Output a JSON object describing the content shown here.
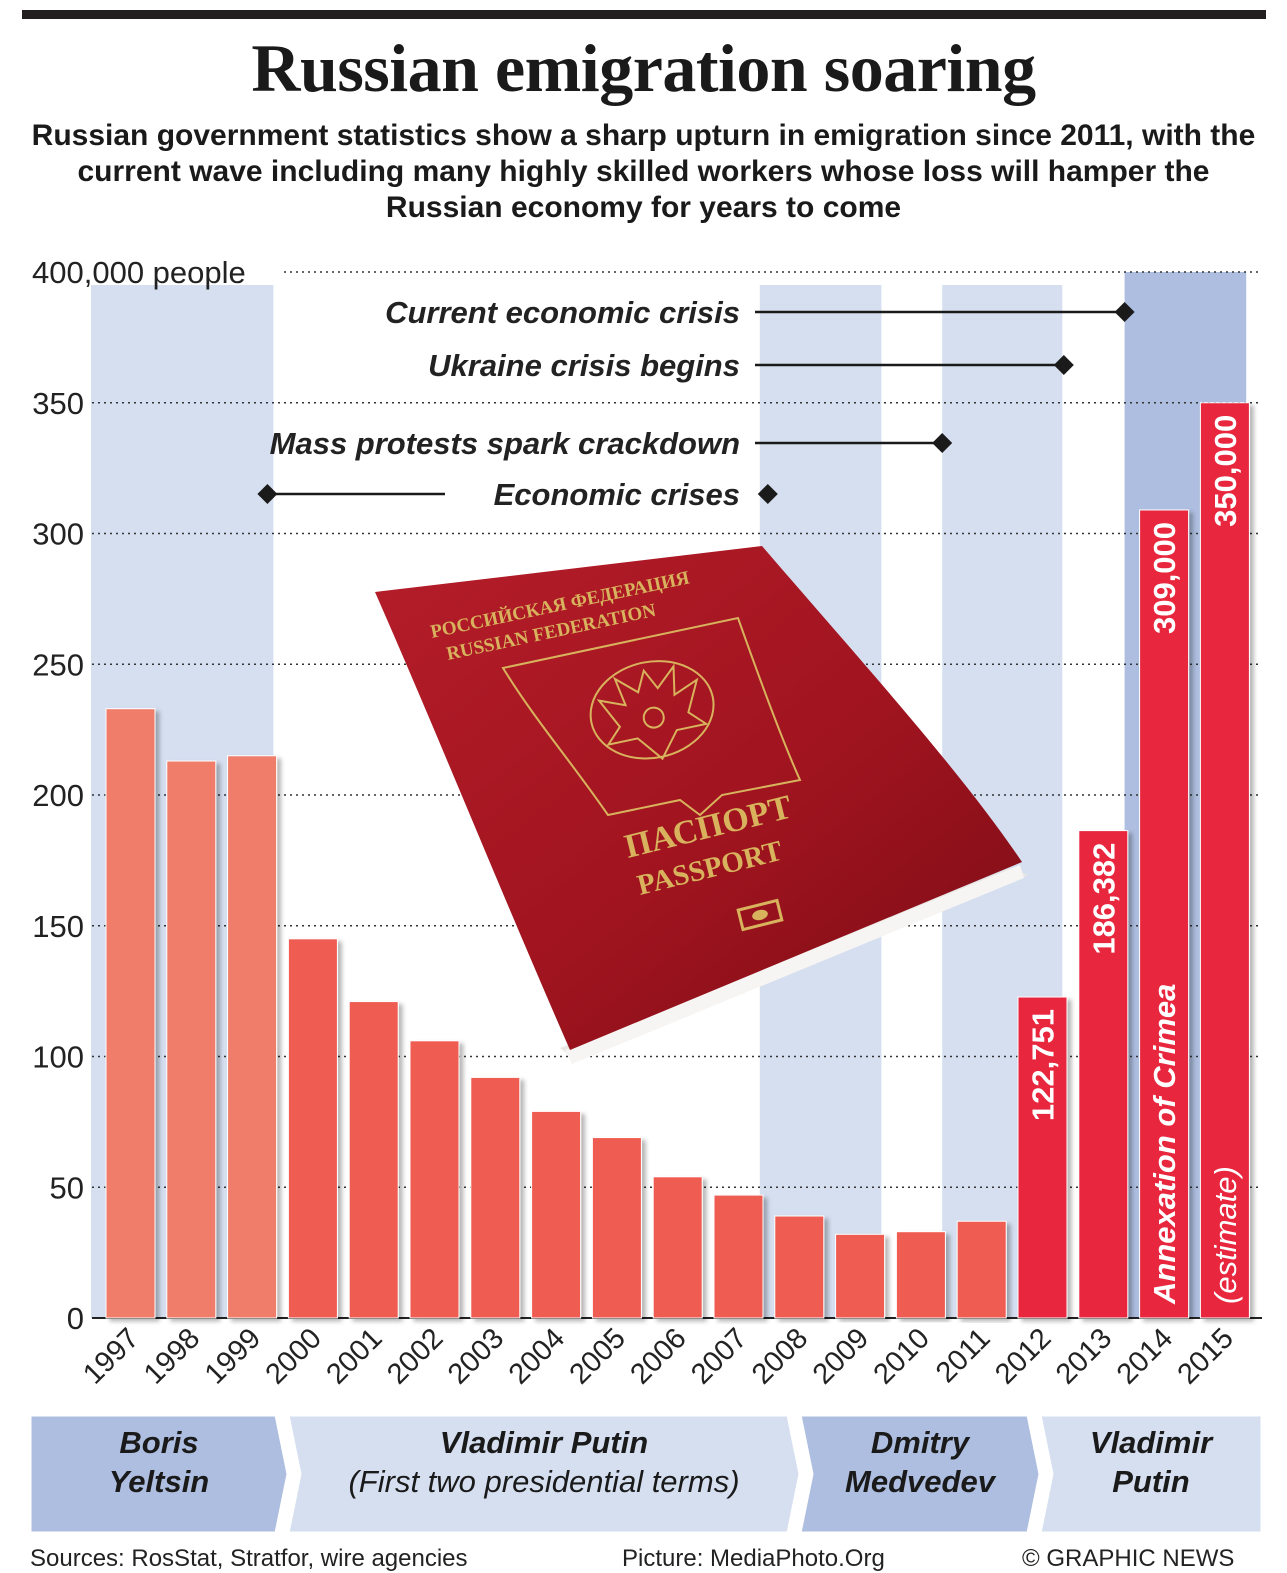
{
  "title": "Russian emigration soaring",
  "subtitle": "Russian government statistics show a sharp upturn in emigration since 2011, with the current wave including many highly skilled workers whose loss will hamper the Russian economy for years to come",
  "colors": {
    "bar_early": "#f07d6b",
    "bar_mid": "#ef5b51",
    "bar_late": "#e8283d",
    "band_light": "#d5dff0",
    "band_dark": "#aebee0",
    "leader_band": "#aebee0"
  },
  "chart_data": {
    "type": "bar",
    "categories": [
      "1997",
      "1998",
      "1999",
      "2000",
      "2001",
      "2002",
      "2003",
      "2004",
      "2005",
      "2006",
      "2007",
      "2008",
      "2009",
      "2010",
      "2011",
      "2012",
      "2013",
      "2014",
      "2015"
    ],
    "values": [
      233000,
      213000,
      215000,
      145000,
      121000,
      106000,
      92000,
      79000,
      69000,
      54000,
      47000,
      39000,
      32000,
      33000,
      37000,
      122751,
      186382,
      309000,
      350000
    ],
    "ylim": [
      0,
      400000
    ],
    "yticks": [
      {
        "value": 0,
        "label": "0"
      },
      {
        "value": 50000,
        "label": "50"
      },
      {
        "value": 100000,
        "label": "100"
      },
      {
        "value": 150000,
        "label": "150"
      },
      {
        "value": 200000,
        "label": "200"
      },
      {
        "value": 250000,
        "label": "250"
      },
      {
        "value": 300000,
        "label": "300"
      },
      {
        "value": 350000,
        "label": "350"
      },
      {
        "value": 400000,
        "label": "400,000 people"
      }
    ],
    "grid": "dotted horizontal",
    "data_labels": [
      {
        "category": "2012",
        "text": "122,751"
      },
      {
        "category": "2013",
        "text": "186,382"
      },
      {
        "category": "2014",
        "text": "309,000"
      },
      {
        "category": "2015",
        "text": "350,000"
      }
    ],
    "bar_notes": [
      {
        "category": "2014",
        "text": "Annexation of Crimea"
      },
      {
        "category": "2015",
        "text": "(estimate)"
      }
    ],
    "annotations": [
      {
        "text": "Current economic crisis",
        "at": "2014"
      },
      {
        "text": "Ukraine crisis begins",
        "at": "2013"
      },
      {
        "text": "Mass protests spark crackdown",
        "at": "2011"
      },
      {
        "text": "Economic crises",
        "from": "2000",
        "to": "2008"
      }
    ],
    "periods": [
      {
        "name_line1": "Boris",
        "name_line2": "Yeltsin",
        "from": "1997",
        "to": "1999"
      },
      {
        "name_line1": "Vladimir Putin",
        "name_line2": "(First two presidential terms)",
        "from": "2000",
        "to": "2007"
      },
      {
        "name_line1": "Dmitry",
        "name_line2": "Medvedev",
        "from": "2008",
        "to": "2011"
      },
      {
        "name_line1": "Vladimir",
        "name_line2": "Putin",
        "from": "2012",
        "to": "2015"
      }
    ]
  },
  "footer": {
    "sources": "Sources: RosStat, Stratfor, wire agencies",
    "picture": "Picture: MediaPhoto.Org",
    "credit": "© GRAPHIC NEWS"
  },
  "passport": {
    "line1": "РОССИЙСКАЯ ФЕДЕРАЦИЯ",
    "line2": "RUSSIAN FEDERATION",
    "line3": "ПАСПОРТ",
    "line4": "PASSPORT"
  }
}
